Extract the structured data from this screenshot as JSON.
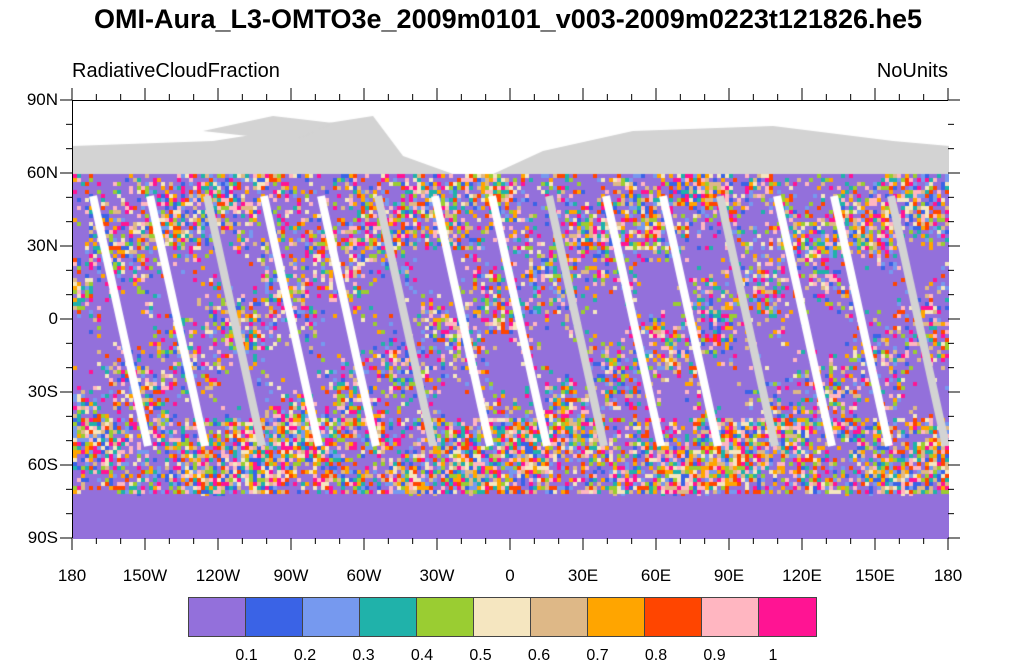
{
  "title": "OMI-Aura_L3-OMTO3e_2009m0101_v003-2009m0223t121826.he5",
  "left_label": "RadiativeCloudFraction",
  "right_label": "NoUnits",
  "lat_ticks": [
    "90N",
    "60N",
    "30N",
    "0",
    "30S",
    "60S",
    "90S"
  ],
  "lon_ticks": [
    "180",
    "150W",
    "120W",
    "90W",
    "60W",
    "30W",
    "0",
    "30E",
    "60E",
    "90E",
    "120E",
    "150E",
    "180"
  ],
  "colorbar": {
    "colors": [
      "#9370DB",
      "#3A63E6",
      "#7699EF",
      "#20B2AA",
      "#9ACD32",
      "#F5E6C0",
      "#DEB887",
      "#FFA500",
      "#FF4500",
      "#FFB6C1",
      "#FF1493"
    ],
    "labels": [
      "0.1",
      "0.2",
      "0.3",
      "0.4",
      "0.5",
      "0.6",
      "0.7",
      "0.8",
      "0.9",
      "1"
    ]
  },
  "colors": {
    "land_missing": "#D3D3D3",
    "swath_gap": "#FFFFFF",
    "coastline": "#333333"
  }
}
